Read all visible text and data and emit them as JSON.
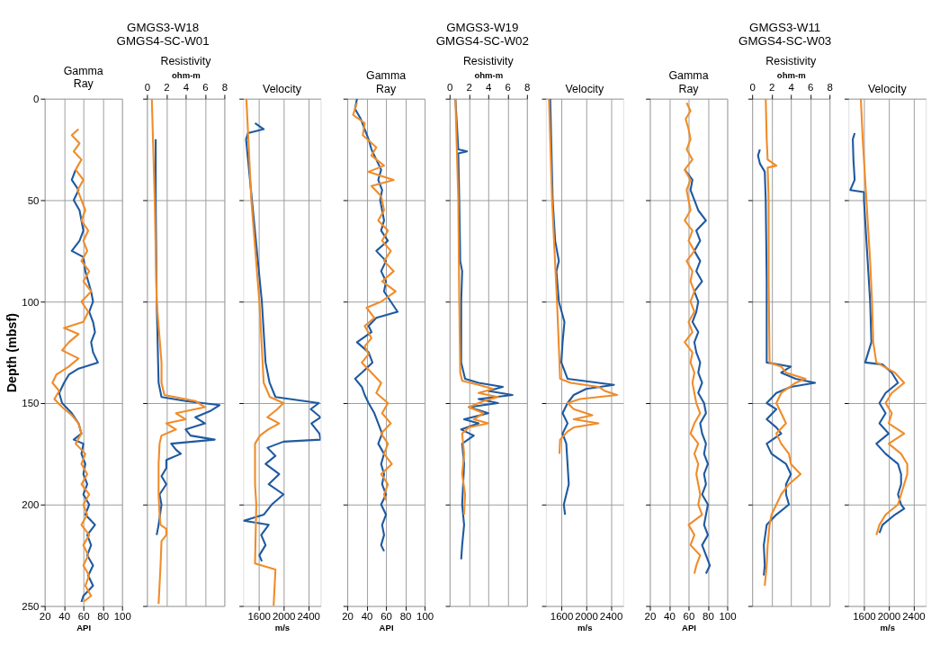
{
  "chart_data": [
    {
      "type": "line",
      "title": "Gamma\nRay",
      "annotations": [
        "GMGS3-W18",
        "GMGS4-SC-W01"
      ],
      "xlabel": "API",
      "ylabel": "Depth (mbsf)",
      "xlim": [
        20,
        100
      ],
      "xticks": [
        20,
        40,
        60,
        80,
        100
      ],
      "ylim": [
        250,
        0
      ],
      "yticks": [
        0,
        50,
        100,
        150,
        200,
        250
      ],
      "grid": true,
      "series": [
        {
          "color": "#1f5aa0",
          "x": [
            52,
            48,
            55,
            50,
            56,
            58,
            60,
            56,
            48,
            60,
            62,
            65,
            68,
            70,
            66,
            70,
            72,
            68,
            70,
            75,
            55,
            45,
            40,
            35,
            38,
            48,
            55,
            58,
            50,
            60,
            58,
            62,
            60,
            64,
            60,
            66,
            62,
            72,
            64,
            68,
            64,
            70,
            65,
            70,
            60,
            58
          ],
          "values": [
            35,
            40,
            45,
            50,
            55,
            60,
            65,
            70,
            75,
            78,
            85,
            90,
            95,
            100,
            105,
            110,
            115,
            120,
            125,
            130,
            133,
            136,
            140,
            145,
            150,
            155,
            160,
            165,
            168,
            170,
            175,
            180,
            185,
            190,
            195,
            200,
            205,
            210,
            215,
            220,
            225,
            230,
            235,
            240,
            245,
            248
          ]
        },
        {
          "color": "#f08c2a",
          "x": [
            55,
            48,
            56,
            50,
            58,
            52,
            60,
            54,
            58,
            62,
            58,
            65,
            60,
            64,
            58,
            66,
            60,
            68,
            58,
            65,
            60,
            40,
            55,
            45,
            38,
            55,
            45,
            32,
            28,
            35,
            30,
            38,
            48,
            55,
            58,
            52,
            62,
            58,
            64,
            58,
            66,
            60,
            64,
            58,
            66,
            60,
            65,
            60,
            66,
            62,
            68,
            60
          ],
          "values": [
            15,
            18,
            22,
            26,
            30,
            35,
            40,
            45,
            50,
            55,
            60,
            65,
            70,
            75,
            80,
            85,
            90,
            95,
            100,
            105,
            110,
            113,
            116,
            120,
            124,
            128,
            132,
            136,
            140,
            144,
            148,
            152,
            156,
            160,
            165,
            170,
            175,
            180,
            185,
            190,
            195,
            200,
            205,
            210,
            215,
            220,
            225,
            230,
            235,
            240,
            245,
            248
          ]
        }
      ]
    },
    {
      "type": "line",
      "title": "Resistivity",
      "xlabel": "ohm-m",
      "xlim": [
        0,
        8
      ],
      "xticks": [
        0,
        2,
        4,
        6,
        8
      ],
      "ylim": [
        250,
        0
      ],
      "yticks": [
        0,
        50,
        100,
        150,
        200,
        250
      ],
      "grid": true,
      "tick_labels": "x",
      "series": [
        {
          "color": "#1f5aa0",
          "x": [
            0.9,
            0.9,
            1.0,
            1.2,
            1.5,
            4,
            7.5,
            6.5,
            5,
            6,
            4,
            4.5,
            7,
            2.5,
            3,
            3.5,
            2,
            2,
            1.5,
            2,
            1.3,
            1.5,
            1.2,
            1.0
          ],
          "values": [
            20,
            50,
            100,
            140,
            147,
            149,
            151,
            154,
            157,
            160,
            163,
            166,
            168,
            170,
            173,
            175,
            178,
            182,
            186,
            190,
            195,
            200,
            210,
            215
          ]
        },
        {
          "color": "#f08c2a",
          "x": [
            0.5,
            0.8,
            1.0,
            1.5,
            1.5,
            1.8,
            5,
            6,
            3,
            4,
            2,
            3,
            1.5,
            1.3,
            1.2,
            1.2,
            1.3,
            1.4,
            2,
            2,
            1.5,
            1.4,
            1.2
          ],
          "values": [
            0,
            50,
            100,
            130,
            140,
            146,
            149,
            152,
            155,
            158,
            160,
            163,
            166,
            170,
            180,
            195,
            205,
            210,
            212,
            215,
            218,
            230,
            249
          ]
        }
      ]
    },
    {
      "type": "line",
      "title": "Velocity",
      "xlabel": "m/s",
      "xlim": [
        1350,
        2600
      ],
      "xticks": [
        1600,
        2000,
        2400
      ],
      "ylim": [
        250,
        0
      ],
      "yticks": [
        0,
        50,
        100,
        150,
        200,
        250
      ],
      "grid": true,
      "tick_labels": "x",
      "series": [
        {
          "color": "#1f5aa0",
          "x": [
            1540,
            1680,
            1425,
            1395,
            1490,
            1650,
            1710,
            1775,
            1870,
            2570,
            2440,
            2600,
            2450,
            2580,
            2600,
            2000,
            1740,
            1870,
            1710,
            1930,
            1760,
            2000,
            1810,
            1680,
            1360,
            1760,
            1640,
            1710,
            1610,
            1650
          ],
          "values": [
            12,
            15,
            17,
            20,
            50,
            100,
            130,
            140,
            147,
            150,
            153,
            157,
            160,
            165,
            168,
            169,
            172,
            176,
            180,
            185,
            190,
            195,
            200,
            205,
            208,
            210,
            215,
            220,
            225,
            228
          ]
        },
        {
          "color": "#f08c2a",
          "x": [
            1400,
            1480,
            1610,
            1680,
            1780,
            2000,
            1900,
            1740,
            1930,
            1750,
            1620,
            1540,
            1540,
            1560,
            1540,
            1870,
            1840
          ],
          "values": [
            0,
            50,
            100,
            140,
            147,
            150,
            153,
            157,
            160,
            163,
            166,
            170,
            190,
            200,
            229,
            232,
            250
          ]
        }
      ]
    },
    {
      "type": "line",
      "title": "Gamma\nRay",
      "annotations": [
        "GMGS3-W19",
        "GMGS4-SC-W02"
      ],
      "xlabel": "API",
      "xlim": [
        20,
        100
      ],
      "xticks": [
        20,
        40,
        60,
        80,
        100
      ],
      "ylim": [
        250,
        0
      ],
      "yticks": [
        0,
        50,
        100,
        150,
        200,
        250
      ],
      "grid": true,
      "tick_labels": "x",
      "series": [
        {
          "color": "#1f5aa0",
          "x": [
            30,
            28,
            34,
            38,
            42,
            45,
            50,
            55,
            52,
            56,
            54,
            56,
            58,
            55,
            62,
            50,
            60,
            55,
            60,
            58,
            65,
            72,
            50,
            42,
            45,
            30,
            42,
            46,
            35,
            28,
            35,
            38,
            42,
            48,
            52,
            56,
            52,
            58,
            55,
            58,
            56,
            60,
            55,
            60,
            56,
            58,
            55,
            58
          ],
          "values": [
            0,
            5,
            10,
            15,
            20,
            25,
            30,
            35,
            40,
            45,
            50,
            55,
            60,
            65,
            70,
            75,
            80,
            85,
            90,
            95,
            100,
            105,
            108,
            112,
            115,
            120,
            125,
            130,
            135,
            138,
            142,
            146,
            150,
            155,
            160,
            165,
            170,
            175,
            180,
            185,
            190,
            195,
            200,
            205,
            210,
            215,
            220,
            223
          ]
        },
        {
          "color": "#f08c2a",
          "x": [
            30,
            26,
            38,
            36,
            50,
            45,
            58,
            42,
            68,
            45,
            55,
            58,
            52,
            62,
            56,
            65,
            58,
            68,
            56,
            70,
            55,
            40,
            48,
            38,
            45,
            38,
            42,
            35,
            45,
            55,
            50,
            62,
            56,
            65,
            55,
            62,
            58,
            66,
            55,
            62,
            58,
            60
          ],
          "values": [
            2,
            8,
            12,
            18,
            24,
            28,
            33,
            36,
            40,
            43,
            48,
            55,
            60,
            65,
            70,
            75,
            80,
            85,
            90,
            95,
            100,
            103,
            108,
            112,
            118,
            122,
            126,
            130,
            135,
            140,
            145,
            150,
            155,
            160,
            165,
            170,
            175,
            180,
            185,
            190,
            195,
            198
          ]
        }
      ]
    },
    {
      "type": "line",
      "title": "Resistivity",
      "xlabel": "ohm-m",
      "xlim": [
        0,
        8
      ],
      "xticks": [
        0,
        2,
        4,
        6,
        8
      ],
      "ylim": [
        250,
        0
      ],
      "yticks": [
        0,
        50,
        100,
        150,
        200,
        250
      ],
      "grid": true,
      "tick_labels": "x",
      "series": [
        {
          "color": "#1f5aa0",
          "x": [
            0.6,
            0.9,
            1.8,
            0.9,
            1.0,
            1.1,
            1.3,
            1.2,
            1.2,
            1.6,
            3,
            5.5,
            4,
            6.5,
            3,
            5,
            2,
            4,
            1.5,
            3,
            1.2,
            2.5,
            1.3,
            1.5,
            1.3,
            1.5,
            1.3,
            1.2
          ],
          "values": [
            0,
            25,
            26,
            27,
            50,
            80,
            85,
            100,
            130,
            138,
            140,
            142,
            144,
            146,
            148,
            150,
            152,
            155,
            158,
            160,
            163,
            166,
            170,
            180,
            200,
            210,
            220,
            227
          ]
        },
        {
          "color": "#f08c2a",
          "x": [
            0.6,
            0.9,
            1.0,
            1.1,
            1.3,
            3,
            4.5,
            3,
            5,
            3.5,
            2,
            3.5,
            2.5,
            4,
            2,
            1.3,
            1.5,
            1.3,
            1.6,
            1.5
          ],
          "values": [
            0,
            50,
            100,
            135,
            139,
            141,
            143,
            145,
            147,
            149,
            152,
            155,
            158,
            160,
            162,
            165,
            175,
            185,
            195,
            205
          ]
        }
      ]
    },
    {
      "type": "line",
      "title": "Velocity",
      "xlabel": "m/s",
      "xlim": [
        1350,
        2600
      ],
      "xticks": [
        1600,
        2000,
        2400
      ],
      "ylim": [
        250,
        0
      ],
      "yticks": [
        0,
        50,
        100,
        150,
        200,
        250
      ],
      "grid": true,
      "tick_labels": "x",
      "series": [
        {
          "color": "#1f5aa0",
          "x": [
            1420,
            1460,
            1500,
            1560,
            1520,
            1560,
            1650,
            1620,
            1600,
            1700,
            2450,
            2000,
            1800,
            1700,
            1620,
            1700,
            1620,
            1680,
            1700,
            1720,
            1640,
            1660
          ],
          "values": [
            0,
            50,
            70,
            80,
            85,
            100,
            110,
            120,
            130,
            138,
            141,
            143,
            146,
            150,
            155,
            160,
            165,
            170,
            180,
            190,
            200,
            205
          ]
        },
        {
          "color": "#f08c2a",
          "x": [
            1400,
            1450,
            1530,
            1570,
            1580,
            1750,
            2200,
            2300,
            2500,
            1900,
            1700,
            1800,
            2100,
            1800,
            2200,
            1800,
            1700,
            1580,
            1570
          ],
          "values": [
            0,
            50,
            100,
            130,
            138,
            140,
            142,
            144,
            146,
            148,
            150,
            153,
            156,
            158,
            160,
            162,
            164,
            168,
            175
          ]
        }
      ]
    },
    {
      "type": "line",
      "title": "Gamma\nRay",
      "annotations": [
        "GMGS3-W11",
        "GMGS4-SC-W03"
      ],
      "xlabel": "API",
      "xlim": [
        20,
        100
      ],
      "xticks": [
        20,
        40,
        60,
        80,
        100
      ],
      "ylim": [
        250,
        0
      ],
      "yticks": [
        0,
        50,
        100,
        150,
        200,
        250
      ],
      "grid": true,
      "tick_labels": "x",
      "series": [
        {
          "color": "#1f5aa0",
          "x": [
            56,
            64,
            62,
            66,
            70,
            78,
            68,
            72,
            66,
            72,
            68,
            74,
            66,
            70,
            68,
            64,
            70,
            66,
            68,
            72,
            70,
            74,
            70,
            76,
            78,
            72,
            74,
            78,
            76,
            80,
            76,
            78,
            74,
            80,
            78,
            76,
            80,
            74,
            78,
            82,
            78
          ],
          "values": [
            35,
            40,
            45,
            50,
            55,
            60,
            65,
            70,
            75,
            80,
            85,
            90,
            95,
            100,
            105,
            110,
            115,
            120,
            125,
            130,
            135,
            140,
            145,
            150,
            155,
            160,
            165,
            170,
            175,
            180,
            185,
            190,
            195,
            200,
            205,
            210,
            215,
            220,
            225,
            230,
            234
          ]
        },
        {
          "color": "#f08c2a",
          "x": [
            58,
            62,
            57,
            60,
            62,
            58,
            64,
            56,
            62,
            58,
            60,
            62,
            56,
            64,
            60,
            66,
            58,
            64,
            62,
            66,
            62,
            66,
            60,
            64,
            56,
            64,
            62,
            66,
            64,
            66,
            68,
            72,
            66,
            62,
            70,
            66,
            70,
            68,
            70,
            72,
            70,
            74,
            60,
            66,
            62,
            72,
            68,
            66
          ],
          "values": [
            2,
            6,
            10,
            15,
            20,
            25,
            30,
            35,
            40,
            45,
            50,
            55,
            60,
            65,
            70,
            75,
            80,
            85,
            90,
            95,
            100,
            105,
            110,
            115,
            120,
            125,
            130,
            135,
            140,
            145,
            150,
            155,
            160,
            165,
            170,
            175,
            180,
            185,
            190,
            195,
            200,
            205,
            210,
            215,
            220,
            225,
            230,
            234
          ]
        }
      ]
    },
    {
      "type": "line",
      "title": "Resistivity",
      "xlabel": "ohm-m",
      "xlim": [
        0,
        8
      ],
      "xticks": [
        0,
        2,
        4,
        6,
        8
      ],
      "ylim": [
        250,
        0
      ],
      "yticks": [
        0,
        50,
        100,
        150,
        200,
        250
      ],
      "grid": true,
      "tick_labels": "x",
      "series": [
        {
          "color": "#1f5aa0",
          "x": [
            0.8,
            0.6,
            0.8,
            1.3,
            1.4,
            1.5,
            1.5,
            4,
            3,
            4.5,
            6.5,
            4,
            2.5,
            1.5,
            2.5,
            1.5,
            2.5,
            3,
            1.5,
            2,
            3.5,
            4,
            3.5,
            3.5,
            3.8,
            2.5,
            1.5,
            1.2,
            1.3,
            1.2
          ],
          "values": [
            25,
            28,
            32,
            36,
            50,
            90,
            130,
            132,
            135,
            138,
            140,
            142,
            145,
            150,
            153,
            158,
            162,
            165,
            170,
            175,
            180,
            185,
            190,
            195,
            200,
            205,
            210,
            220,
            230,
            235
          ]
        },
        {
          "color": "#f08c2a",
          "x": [
            1.4,
            1.5,
            1.6,
            2.5,
            1.6,
            1.7,
            1.7,
            1.8,
            3,
            3.5,
            5.5,
            4.5,
            3,
            2.5,
            3,
            3.5,
            2.5,
            3,
            3.8,
            4,
            5,
            3.8,
            3,
            2.5,
            2,
            1.8,
            1.6,
            1.5,
            1.3
          ],
          "values": [
            0,
            20,
            30,
            33,
            34,
            50,
            90,
            130,
            132,
            135,
            138,
            140,
            145,
            150,
            155,
            160,
            165,
            170,
            175,
            180,
            185,
            190,
            195,
            200,
            205,
            210,
            220,
            230,
            240
          ]
        }
      ]
    },
    {
      "type": "line",
      "title": "Velocity",
      "xlabel": "m/s",
      "xlim": [
        1350,
        2600
      ],
      "xticks": [
        1600,
        2000,
        2400
      ],
      "ylim": [
        250,
        0
      ],
      "yticks": [
        0,
        50,
        100,
        150,
        200,
        250
      ],
      "grid": true,
      "tick_labels": "x",
      "series": [
        {
          "color": "#1f5aa0",
          "x": [
            1450,
            1420,
            1430,
            1450,
            1380,
            1600,
            1600,
            1660,
            1700,
            1720,
            1620,
            1900,
            2050,
            2150,
            1950,
            1850,
            1950,
            1850,
            2000,
            1800,
            1950,
            2150,
            2200,
            2200,
            2150,
            2200,
            2250,
            2100,
            1900,
            1850
          ],
          "values": [
            17,
            20,
            30,
            40,
            45,
            46,
            50,
            80,
            100,
            120,
            130,
            131,
            135,
            140,
            145,
            150,
            155,
            160,
            165,
            170,
            175,
            180,
            185,
            190,
            195,
            200,
            202,
            205,
            210,
            214
          ]
        },
        {
          "color": "#f08c2a",
          "x": [
            1550,
            1580,
            1640,
            1700,
            1730,
            1750,
            1800,
            2100,
            2250,
            2050,
            1950,
            2050,
            2000,
            2250,
            2000,
            2200,
            2300,
            2300,
            2250,
            2200,
            2150,
            1950,
            1850,
            1800
          ],
          "values": [
            0,
            20,
            50,
            80,
            100,
            120,
            130,
            135,
            140,
            145,
            150,
            155,
            160,
            165,
            170,
            175,
            180,
            185,
            190,
            195,
            200,
            205,
            210,
            215
          ]
        }
      ]
    }
  ]
}
